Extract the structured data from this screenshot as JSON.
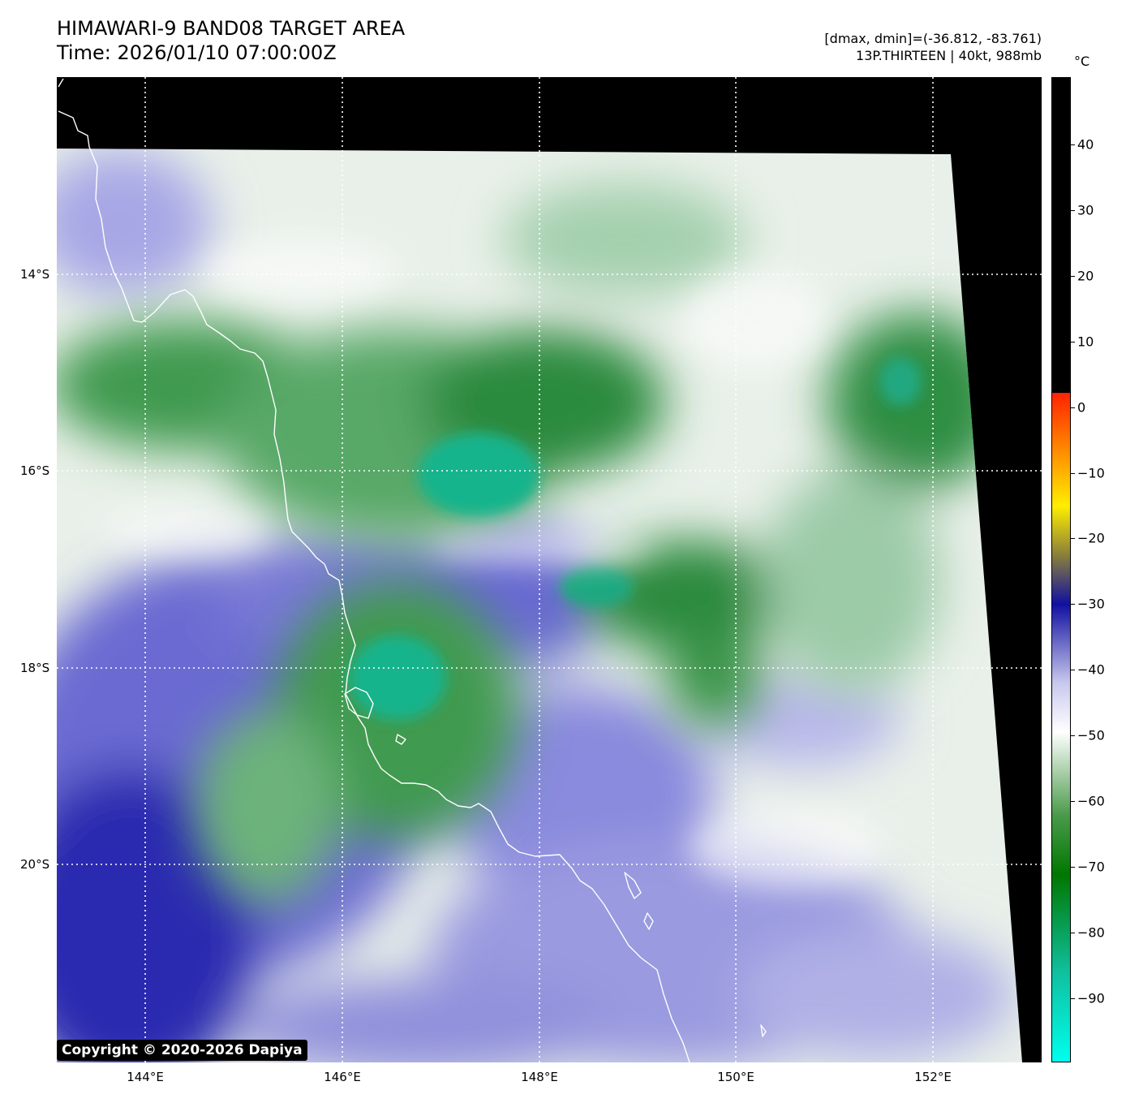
{
  "title": {
    "line1": "HIMAWARI-9 BAND08 TARGET AREA",
    "line2": "Time: 2026/01/10 07:00:00Z"
  },
  "info": {
    "range": "[dmax, dmin]=(-36.812, -83.761)",
    "storm": "13P.THIRTEEN | 40kt, 988mb"
  },
  "copyright": "Copyright © 2020-2026 Dapiya",
  "x_axis": {
    "ticks": [
      "144°E",
      "146°E",
      "148°E",
      "150°E",
      "152°E"
    ]
  },
  "y_axis": {
    "ticks": [
      "14°S",
      "16°S",
      "18°S",
      "20°S"
    ]
  },
  "colorbar": {
    "unit": "°C",
    "ticks": [
      "40",
      "30",
      "20",
      "10",
      "0",
      "−10",
      "−20",
      "−30",
      "−40",
      "−50",
      "−60",
      "−70",
      "−80",
      "−90"
    ],
    "colors": {
      "warm_above_2C": "#000000",
      "red": "#ff2200",
      "yellow": "#ffee00",
      "olive": "#8a7f3a",
      "dark_blue": "#1010a0",
      "lavender": "#c8c8ee",
      "white": "#ffffff",
      "green": "#4a9a4a",
      "dark_green": "#007700",
      "teal": "#10c0a0",
      "cyan": "#00ffee"
    }
  },
  "map": {
    "type": "satellite water-vapor brightness temperature imagery",
    "graticule_longitudes": [
      "144°E",
      "146°E",
      "148°E",
      "150°E",
      "152°E"
    ],
    "graticule_latitudes": [
      "14°S",
      "16°S",
      "18°S",
      "20°S"
    ],
    "coastline_color": "#ffffff",
    "grid_line_style": "dotted white"
  }
}
